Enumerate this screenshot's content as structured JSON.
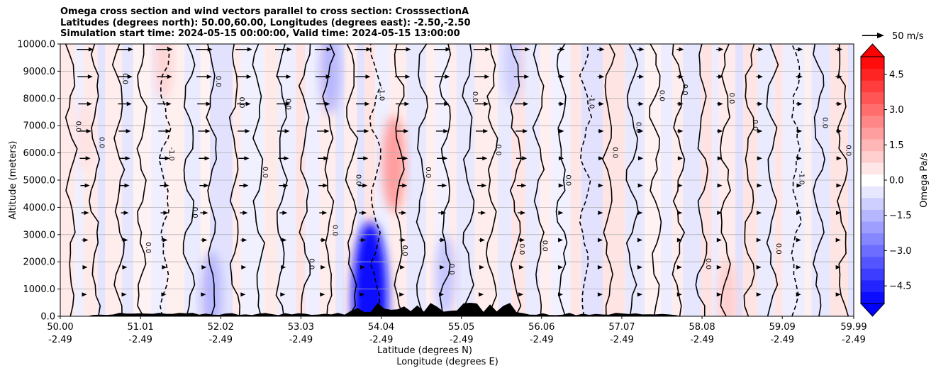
{
  "chart_data": {
    "type": "heatmap",
    "title_lines": [
      "Omega cross section and wind vectors parallel to cross section: CrosssectionA",
      "Latitudes (degrees north): 50.00,60.00, Longitudes (degrees east): -2.50,-2.50",
      "Simulation start time: 2024-05-15 00:00:00, Valid time: 2024-05-15 13:00:00"
    ],
    "ylabel": "Altitude (meters)",
    "xlabel_lines": [
      "Latitude (degrees N)",
      "Longitude (degrees E)"
    ],
    "ylim": [
      0,
      10000
    ],
    "xlim": [
      50.0,
      59.99
    ],
    "yticks": [
      "0.0",
      "1000.0",
      "2000.0",
      "3000.0",
      "4000.0",
      "5000.0",
      "6000.0",
      "7000.0",
      "8000.0",
      "9000.0",
      "10000.0"
    ],
    "xticks": [
      {
        "lat": "50.00",
        "lon": "-2.49",
        "value": 50.0
      },
      {
        "lat": "51.01",
        "lon": "-2.49",
        "value": 51.01
      },
      {
        "lat": "52.02",
        "lon": "-2.49",
        "value": 52.02
      },
      {
        "lat": "53.03",
        "lon": "-2.49",
        "value": 53.03
      },
      {
        "lat": "54.04",
        "lon": "-2.49",
        "value": 54.04
      },
      {
        "lat": "55.05",
        "lon": "-2.49",
        "value": 55.05
      },
      {
        "lat": "56.06",
        "lon": "-2.49",
        "value": 56.06
      },
      {
        "lat": "57.07",
        "lon": "-2.49",
        "value": 57.07
      },
      {
        "lat": "58.08",
        "lon": "-2.49",
        "value": 58.08
      },
      {
        "lat": "59.09",
        "lon": "-2.49",
        "value": 59.09
      },
      {
        "lat": "59.99",
        "lon": "-2.49",
        "value": 59.99
      }
    ],
    "colorbar": {
      "label": "Omega Pa/s",
      "range": [
        -5.25,
        5.25
      ],
      "ticks": [
        "4.5",
        "3.0",
        "1.5",
        "0.0",
        "−1.5",
        "−3.0",
        "−4.5"
      ],
      "tick_values": [
        4.5,
        3.0,
        1.5,
        0.0,
        -1.5,
        -3.0,
        -4.5
      ],
      "extend": "both"
    },
    "quiver_key": {
      "label": "50 m/s",
      "magnitude": 50
    },
    "contour_labels": [
      "0.0",
      "-1.0",
      "1.0"
    ],
    "colors": {
      "positive": "#ff0000",
      "negative": "#0000ff",
      "neutral": "#ffffff",
      "terrain": "#000000"
    },
    "omega_regions": [
      {
        "lat": 53.9,
        "alt": 600,
        "value": -5.0
      },
      {
        "lat": 54.2,
        "alt": 5600,
        "value": 2.0
      },
      {
        "lat": 53.4,
        "alt": 9000,
        "value": -1.5
      },
      {
        "lat": 55.7,
        "alt": 9200,
        "value": -1.0
      },
      {
        "lat": 51.3,
        "alt": 9300,
        "value": 0.9
      },
      {
        "lat": 50.3,
        "alt": 6600,
        "value": 0.6
      },
      {
        "lat": 54.85,
        "alt": 1500,
        "value": -1.2
      },
      {
        "lat": 51.9,
        "alt": 800,
        "value": -1.5
      },
      {
        "lat": 58.4,
        "alt": 700,
        "value": 1.0
      }
    ],
    "wind_level_note": "arrows point east (parallel to cross section), stronger aloft"
  }
}
